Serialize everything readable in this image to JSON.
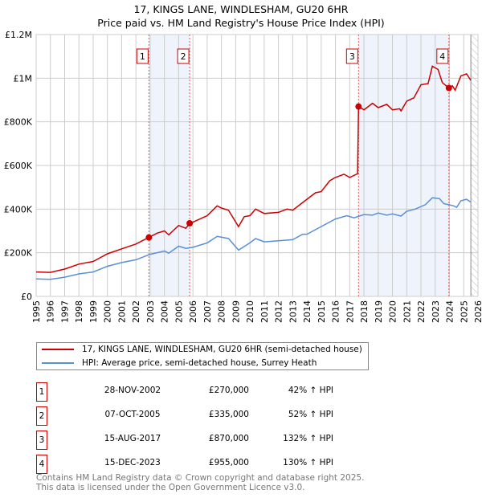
{
  "chart_data": {
    "type": "line",
    "title": "17, KINGS LANE, WINDLESHAM, GU20 6HR",
    "subtitle": "Price paid vs. HM Land Registry's House Price Index (HPI)",
    "xlim": [
      1995,
      2026
    ],
    "ylim": [
      0,
      1200000
    ],
    "x_ticks": [
      "1995",
      "1996",
      "1997",
      "1998",
      "1999",
      "2000",
      "2001",
      "2002",
      "2003",
      "2004",
      "2005",
      "2006",
      "2007",
      "2008",
      "2009",
      "2010",
      "2011",
      "2012",
      "2013",
      "2014",
      "2015",
      "2016",
      "2017",
      "2018",
      "2019",
      "2020",
      "2021",
      "2022",
      "2023",
      "2024",
      "2025",
      "2026"
    ],
    "y_ticks": [
      {
        "v": 0,
        "label": "£0"
      },
      {
        "v": 200000,
        "label": "£200K"
      },
      {
        "v": 400000,
        "label": "£400K"
      },
      {
        "v": 600000,
        "label": "£600K"
      },
      {
        "v": 800000,
        "label": "£800K"
      },
      {
        "v": 1000000,
        "label": "£1M"
      },
      {
        "v": 1200000,
        "label": "£1.2M"
      }
    ],
    "grid": true,
    "data_end": 2025.5,
    "series": [
      {
        "name": "17, KINGS LANE, WINDLESHAM, GU20 6HR (semi-detached house)",
        "color": "#cc0000",
        "x": [
          1995,
          1996,
          1997,
          1998,
          1999,
          2000,
          2001,
          2002,
          2002.9,
          2003.5,
          2004,
          2004.3,
          2005,
          2005.5,
          2005.77,
          2006,
          2007,
          2007.7,
          2008,
          2008.5,
          2009.2,
          2009.6,
          2010,
          2010.4,
          2011,
          2012,
          2012.6,
          2013,
          2013.6,
          2014,
          2014.6,
          2015,
          2015.6,
          2016,
          2016.6,
          2017,
          2017.55,
          2017.62,
          2018,
          2018.6,
          2019,
          2019.6,
          2020,
          2020.5,
          2020.6,
          2021,
          2021.5,
          2022,
          2022.5,
          2022.8,
          2023.2,
          2023.5,
          2023.96,
          2024.2,
          2024.4,
          2024.8,
          2025.2,
          2025.5
        ],
        "y": [
          112000,
          110000,
          125000,
          148000,
          160000,
          195000,
          218000,
          240000,
          270000,
          290000,
          300000,
          282000,
          325000,
          312000,
          335000,
          340000,
          370000,
          415000,
          405000,
          395000,
          320000,
          365000,
          370000,
          400000,
          380000,
          385000,
          400000,
          395000,
          425000,
          445000,
          475000,
          480000,
          530000,
          545000,
          560000,
          545000,
          562000,
          870000,
          855000,
          885000,
          865000,
          880000,
          855000,
          860000,
          850000,
          895000,
          910000,
          970000,
          975000,
          1055000,
          1040000,
          980000,
          955000,
          965000,
          945000,
          1010000,
          1020000,
          990000
        ]
      },
      {
        "name": "HPI: Average price, semi-detached house, Surrey Heath",
        "color": "#5b8fd4",
        "x": [
          1995,
          1996,
          1997,
          1998,
          1999,
          2000,
          2001,
          2002,
          2003,
          2004,
          2004.3,
          2005,
          2005.5,
          2006,
          2007,
          2007.7,
          2008.5,
          2009.2,
          2010,
          2010.4,
          2011,
          2012,
          2013,
          2013.7,
          2014,
          2015,
          2016,
          2016.8,
          2017.3,
          2018,
          2018.6,
          2019,
          2019.6,
          2020,
          2020.6,
          2021,
          2021.6,
          2022.3,
          2022.8,
          2023.3,
          2023.6,
          2024.3,
          2024.5,
          2024.8,
          2025.2,
          2025.5
        ],
        "y": [
          80000,
          78000,
          88000,
          103000,
          112000,
          138000,
          155000,
          168000,
          193000,
          208000,
          198000,
          230000,
          220000,
          225000,
          245000,
          275000,
          265000,
          212000,
          245000,
          265000,
          250000,
          255000,
          260000,
          285000,
          285000,
          320000,
          355000,
          370000,
          360000,
          375000,
          372000,
          382000,
          372000,
          378000,
          368000,
          390000,
          400000,
          420000,
          452000,
          448000,
          425000,
          415000,
          408000,
          438000,
          445000,
          432000
        ]
      }
    ],
    "sales": [
      {
        "n": "1",
        "x": 2002.91,
        "y": 270000,
        "date": "28-NOV-2002",
        "price": "£270,000",
        "hpi": "42% ↑ HPI"
      },
      {
        "n": "2",
        "x": 2005.77,
        "y": 335000,
        "date": "07-OCT-2005",
        "price": "£335,000",
        "hpi": "52% ↑ HPI"
      },
      {
        "n": "3",
        "x": 2017.62,
        "y": 870000,
        "date": "15-AUG-2017",
        "price": "£870,000",
        "hpi": "132% ↑ HPI"
      },
      {
        "n": "4",
        "x": 2023.96,
        "y": 955000,
        "date": "15-DEC-2023",
        "price": "£955,000",
        "hpi": "130% ↑ HPI"
      }
    ],
    "shaded_periods": [
      [
        2002.91,
        2005.77
      ],
      [
        2017.62,
        2023.96
      ]
    ]
  },
  "footer": {
    "line1": "Contains HM Land Registry data © Crown copyright and database right 2025.",
    "line2": "This data is licensed under the Open Government Licence v3.0."
  }
}
